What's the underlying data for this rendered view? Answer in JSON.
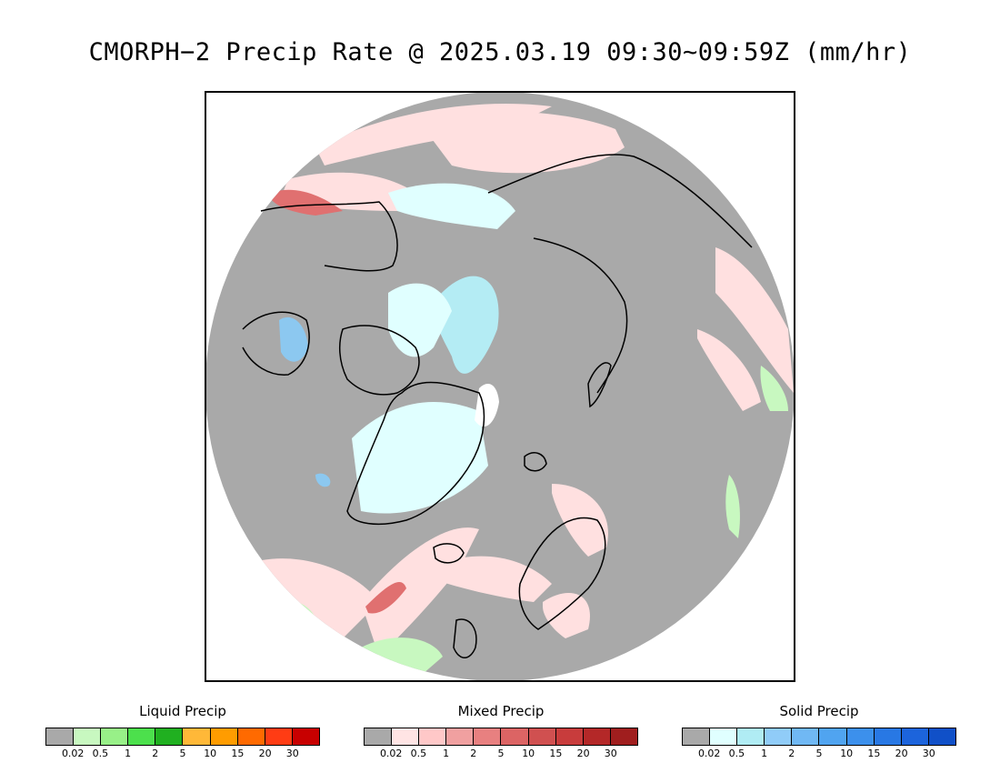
{
  "title": "CMORPH−2 Precip Rate @ 2025.03.19 09:30~09:59Z (mm/hr)",
  "map": {
    "projection": "north-polar-stereographic",
    "background_color": "#a9a9a9",
    "colors": {
      "light_pink": "#ffe0e0",
      "pink": "#ffc8c8",
      "red": "#e07070",
      "pale_blue": "#e0ffff",
      "light_blue": "#b4ecf4",
      "blue": "#8cc8f0",
      "light_green": "#c8f8c0",
      "coast": "#000000"
    }
  },
  "legends": [
    {
      "title": "Liquid Precip",
      "colors": [
        "#a9a9a9",
        "#c8f8c0",
        "#98f088",
        "#4ce04c",
        "#20b020",
        "#ffb838",
        "#ff9c00",
        "#ff6a00",
        "#ff3c14",
        "#c80000"
      ],
      "ticks": [
        "0.02",
        "0.5",
        "1",
        "2",
        "5",
        "10",
        "15",
        "20",
        "30"
      ]
    },
    {
      "title": "Mixed Precip",
      "colors": [
        "#a9a9a9",
        "#ffe4e4",
        "#ffc8c8",
        "#f0a0a0",
        "#e88080",
        "#dc6464",
        "#d05050",
        "#c83c3c",
        "#b42828",
        "#a01e1e"
      ],
      "ticks": [
        "0.02",
        "0.5",
        "1",
        "2",
        "5",
        "10",
        "15",
        "20",
        "30"
      ]
    },
    {
      "title": "Solid Precip",
      "colors": [
        "#a9a9a9",
        "#e0ffff",
        "#b0ecf4",
        "#90ccf8",
        "#70b8f4",
        "#50a4f0",
        "#3c90ec",
        "#2878e4",
        "#1c64dc",
        "#1050c8"
      ],
      "ticks": [
        "0.02",
        "0.5",
        "1",
        "2",
        "5",
        "10",
        "15",
        "20",
        "30"
      ]
    }
  ]
}
